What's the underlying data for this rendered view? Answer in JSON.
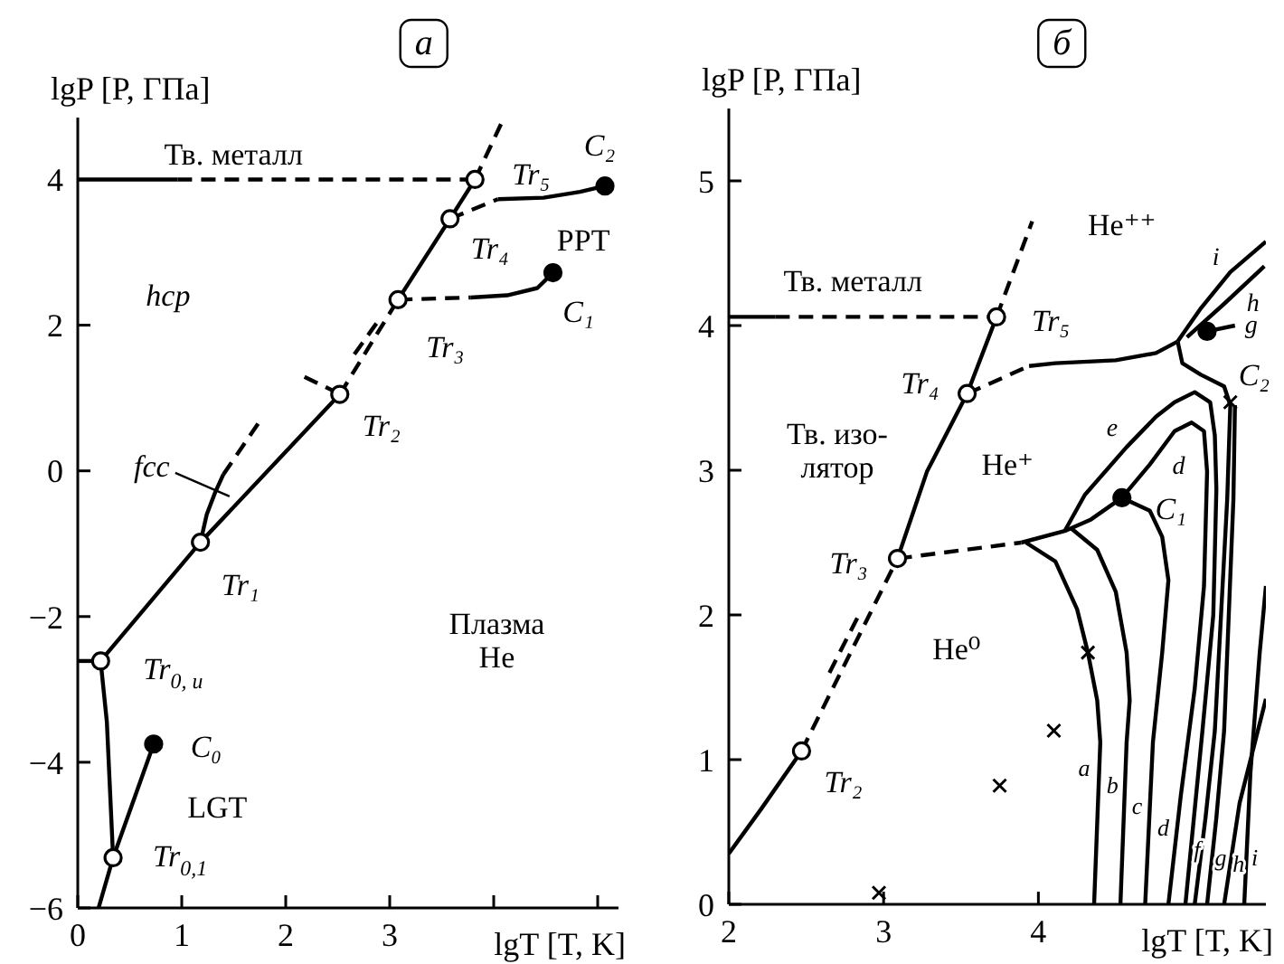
{
  "chart_data": [
    {
      "type": "line",
      "title": "а",
      "xlabel": "lgT [T, K]",
      "ylabel": "lgP [P, ГПа]",
      "xlim": [
        0,
        5.2
      ],
      "ylim": [
        -6,
        4.85
      ],
      "xticks": [
        0,
        1,
        2,
        3,
        {
          "value": 4,
          "label": null
        },
        {
          "value": 5,
          "label": null
        }
      ],
      "yticks": [
        -6,
        -4,
        -2,
        0,
        2,
        4
      ],
      "series": [
        {
          "type": "line",
          "line_style": "solid",
          "color": "#000000",
          "x": [
            0,
            0.96
          ],
          "values": [
            4,
            4
          ]
        },
        {
          "type": "line",
          "line_style": "dashed",
          "color": "#000000",
          "x": [
            0.96,
            3.82
          ],
          "values": [
            4,
            4
          ]
        },
        {
          "type": "line",
          "line_style": "dashed",
          "color": "#000000",
          "x": [
            3.82,
            4.07
          ],
          "values": [
            4,
            4.76
          ]
        },
        {
          "type": "line",
          "line_style": "solid",
          "color": "#000000",
          "x": [
            3.08,
            3.58,
            3.82
          ],
          "values": [
            2.35,
            3.46,
            4
          ]
        },
        {
          "type": "line",
          "line_style": "dashed",
          "color": "#000000",
          "x": [
            3.58,
            4.04
          ],
          "values": [
            3.46,
            3.73
          ]
        },
        {
          "type": "line",
          "line_style": "solid",
          "color": "#000000",
          "x": [
            4.04,
            4.48,
            4.83,
            5.07
          ],
          "values": [
            3.73,
            3.75,
            3.83,
            3.91
          ]
        },
        {
          "type": "line",
          "line_style": "dashed",
          "color": "#000000",
          "x": [
            3.08,
            3.78
          ],
          "values": [
            2.35,
            2.38
          ]
        },
        {
          "type": "line",
          "line_style": "solid",
          "color": "#000000",
          "x": [
            3.78,
            4.13,
            4.42,
            4.57
          ],
          "values": [
            2.38,
            2.41,
            2.51,
            2.72
          ]
        },
        {
          "type": "line",
          "line_style": "dashed",
          "color": "#000000",
          "x": [
            2.52,
            3.08
          ],
          "values": [
            1.05,
            2.35
          ]
        },
        {
          "type": "line",
          "line_style": "dashed",
          "color": "#000000",
          "x": [
            2.66,
            2.88
          ],
          "values": [
            1.6,
            2.04
          ]
        },
        {
          "type": "line",
          "line_style": "dashed",
          "color": "#000000",
          "x": [
            2.18,
            2.47
          ],
          "values": [
            1.29,
            1.09
          ]
        },
        {
          "type": "line",
          "line_style": "solid",
          "color": "#000000",
          "x": [
            0.22,
            1.18,
            2.52
          ],
          "values": [
            -2.61,
            -0.98,
            1.05
          ]
        },
        {
          "type": "line",
          "line_style": "solid",
          "color": "#000000",
          "x": [
            1.18,
            1.24,
            1.32,
            1.4
          ],
          "values": [
            -0.98,
            -0.6,
            -0.3,
            -0.05
          ]
        },
        {
          "type": "line",
          "line_style": "dashed",
          "color": "#000000",
          "x": [
            1.4,
            1.75
          ],
          "values": [
            -0.05,
            0.68
          ]
        },
        {
          "type": "line",
          "line_style": "solid",
          "color": "#000000",
          "x": [
            0,
            0.22
          ],
          "values": [
            -2.61,
            -2.61
          ]
        },
        {
          "type": "line",
          "line_style": "solid",
          "color": "#000000",
          "x": [
            0.22,
            0.28,
            0.34,
            0.2
          ],
          "values": [
            -2.61,
            -3.45,
            -5.31,
            -6
          ]
        },
        {
          "type": "line",
          "line_style": "solid",
          "color": "#000000",
          "x": [
            0.34,
            0.73
          ],
          "values": [
            -5.31,
            -3.75
          ]
        },
        {
          "type": "scatter",
          "marker": "circle",
          "color": "#ffffff",
          "x": [
            0.22,
            0.34,
            1.18,
            2.52,
            3.08,
            3.58,
            3.82
          ],
          "values": [
            -2.61,
            -5.31,
            -0.98,
            1.05,
            2.35,
            3.46,
            4
          ]
        },
        {
          "type": "scatter",
          "marker": "circle",
          "color": "#000000",
          "x": [
            0.73,
            4.57,
            5.07
          ],
          "values": [
            -3.75,
            2.72,
            3.91
          ]
        }
      ],
      "annotations": [
        "Тв. металл",
        "hcp",
        {
          "text": "Tr₅",
          "x": 3.82,
          "y": 4
        },
        {
          "text": "C₂",
          "x": 5.07,
          "y": 3.91
        },
        {
          "text": "Tr₄",
          "x": 3.58,
          "y": 3.46
        },
        "PPT",
        {
          "text": "C₁",
          "x": 4.57,
          "y": 2.72
        },
        {
          "text": "Tr₃",
          "x": 3.08,
          "y": 2.35
        },
        {
          "text": "Tr₂",
          "x": 2.52,
          "y": 1.05
        },
        {
          "text": "fcc",
          "x": 1.32,
          "y": -0.3
        },
        {
          "text": "Tr₁",
          "x": 1.18,
          "y": -0.98
        },
        "Плазма\nHe",
        {
          "text": "Tr$_{0, u}$",
          "x": 0.22,
          "y": -2.61
        },
        {
          "text": "C₀",
          "x": 0.73,
          "y": -3.75
        },
        "LGT",
        {
          "text": "Tr$_{0,1}$",
          "x": 0.34,
          "y": -5.31
        }
      ]
    },
    {
      "type": "line",
      "title": "б",
      "xlabel": "lgT [T, K]",
      "ylabel": "lgP [P, ГПа]",
      "xlim": [
        2,
        5.47
      ],
      "ylim": [
        0,
        5.5
      ],
      "xticks": [
        2,
        3,
        4
      ],
      "yticks": [
        0,
        1,
        2,
        3,
        4,
        5
      ],
      "series": [
        {
          "type": "line",
          "line_style": "solid",
          "color": "#000000",
          "x": [
            2,
            2.3
          ],
          "values": [
            4.06,
            4.06
          ]
        },
        {
          "type": "line",
          "line_style": "dashed",
          "color": "#000000",
          "x": [
            2.3,
            3.73
          ],
          "values": [
            4.06,
            4.06
          ]
        },
        {
          "type": "line",
          "line_style": "dashed",
          "color": "#000000",
          "x": [
            3.73,
            3.96
          ],
          "values": [
            4.06,
            4.72
          ]
        },
        {
          "type": "line",
          "line_style": "solid",
          "color": "#000000",
          "x": [
            3.09,
            3.28,
            3.54,
            3.73
          ],
          "values": [
            2.39,
            2.99,
            3.53,
            4.06
          ]
        },
        {
          "type": "line",
          "line_style": "dashed",
          "color": "#000000",
          "x": [
            3.54,
            3.94
          ],
          "values": [
            3.53,
            3.72
          ]
        },
        {
          "type": "line",
          "line_style": "solid",
          "color": "#000000",
          "x": [
            3.94,
            4.11,
            4.5,
            4.76,
            4.9
          ],
          "values": [
            3.72,
            3.74,
            3.76,
            3.81,
            3.89
          ]
        },
        {
          "type": "line",
          "line_style": "solid",
          "color": "#000000",
          "x": [
            4.9,
            5.05,
            5.24,
            5.47
          ],
          "values": [
            3.89,
            4.12,
            4.37,
            4.58
          ]
        },
        {
          "type": "line",
          "line_style": "solid",
          "color": "#000000",
          "x": [
            4.96,
            5.2,
            5.46
          ],
          "values": [
            3.92,
            4.15,
            4.41
          ]
        },
        {
          "type": "line",
          "line_style": "solid",
          "color": "#000000",
          "x": [
            5.09,
            5.27
          ],
          "values": [
            3.96,
            4
          ]
        },
        {
          "type": "line",
          "line_style": "solid",
          "color": "#000000",
          "x": [
            4.9,
            4.93,
            5.05,
            5.2,
            5.24,
            5.22,
            5.18,
            5.14,
            5.08,
            5.01
          ],
          "values": [
            3.89,
            3.74,
            3.66,
            3.58,
            3.45,
            2.8,
            2,
            1.2,
            0.6,
            0
          ]
        },
        {
          "type": "line",
          "line_style": "solid",
          "color": "#000000",
          "x": [
            5.27,
            5.26,
            5.23,
            5.2,
            5.15,
            5.09
          ],
          "values": [
            3.45,
            2.8,
            2,
            1.2,
            0.6,
            0
          ]
        },
        {
          "type": "line",
          "line_style": "solid",
          "color": "#000000",
          "x": [
            2,
            2.21,
            2.47
          ],
          "values": [
            0.35,
            0.66,
            1.06
          ]
        },
        {
          "type": "line",
          "line_style": "dashed",
          "color": "#000000",
          "x": [
            2.47,
            3.09
          ],
          "values": [
            1.06,
            2.39
          ]
        },
        {
          "type": "line",
          "line_style": "dashed",
          "color": "#000000",
          "x": [
            2.65,
            2.84
          ],
          "values": [
            1.6,
            2
          ]
        },
        {
          "type": "line",
          "line_style": "dashed",
          "color": "#000000",
          "x": [
            3.09,
            3.89
          ],
          "values": [
            2.39,
            2.5
          ]
        },
        {
          "type": "line",
          "line_style": "solid",
          "color": "#000000",
          "x": [
            3.89,
            4.17,
            4.34,
            4.54
          ],
          "values": [
            2.5,
            2.58,
            2.66,
            2.81
          ]
        },
        {
          "type": "line",
          "line_style": "solid",
          "color": "#000000",
          "x": [
            3.92,
            4.11,
            4.25,
            4.32,
            4.38,
            4.4,
            4.36
          ],
          "values": [
            2.5,
            2.37,
            2.04,
            1.74,
            1.41,
            1.12,
            0
          ]
        },
        {
          "type": "line",
          "line_style": "solid",
          "color": "#000000",
          "x": [
            4.21,
            4.38,
            4.5,
            4.57,
            4.59,
            4.57,
            4.53
          ],
          "values": [
            2.6,
            2.45,
            2.16,
            1.74,
            1.41,
            1.12,
            0
          ]
        },
        {
          "type": "line",
          "line_style": "solid",
          "color": "#000000",
          "x": [
            4.54,
            4.72,
            4.8,
            4.84,
            4.8,
            4.74,
            4.69
          ],
          "values": [
            2.81,
            2.72,
            2.54,
            2.24,
            1.74,
            1.12,
            0
          ]
        },
        {
          "type": "line",
          "line_style": "solid",
          "color": "#000000",
          "x": [
            4.54,
            4.72,
            4.88,
            4.99,
            5.07,
            5.09,
            5.07,
            5.01,
            4.92,
            4.84
          ],
          "values": [
            2.81,
            3.04,
            3.27,
            3.33,
            3.27,
            2.99,
            2.2,
            1.49,
            0.75,
            0
          ]
        },
        {
          "type": "line",
          "line_style": "solid",
          "color": "#000000",
          "x": [
            4.17,
            4.3,
            4.57,
            4.76,
            4.88,
            5.01,
            5.11,
            5.14,
            5.15,
            5.13,
            5.06,
            4.95
          ],
          "values": [
            2.58,
            2.83,
            3.16,
            3.37,
            3.47,
            3.54,
            3.47,
            3.24,
            2.87,
            2,
            1.2,
            0
          ]
        },
        {
          "type": "line",
          "line_style": "solid",
          "color": "#000000",
          "x": [
            5.2,
            5.3,
            5.47
          ],
          "values": [
            0,
            0.7,
            1.42
          ]
        },
        {
          "type": "line",
          "line_style": "solid",
          "color": "#000000",
          "x": [
            5.33,
            5.37,
            5.43,
            5.47
          ],
          "values": [
            0,
            0.91,
            1.74,
            2.2
          ]
        },
        {
          "type": "scatter",
          "marker": "circle",
          "color": "#ffffff",
          "x": [
            2.47,
            3.09,
            3.54,
            3.73
          ],
          "values": [
            1.06,
            2.39,
            3.53,
            4.06
          ]
        },
        {
          "type": "scatter",
          "marker": "circle",
          "color": "#000000",
          "x": [
            4.54,
            5.09
          ],
          "values": [
            2.81,
            3.96
          ]
        },
        {
          "type": "scatter",
          "marker": "cross",
          "color": "#000000",
          "x": [
            4.32,
            4.1,
            3.75,
            2.97,
            5.24
          ],
          "values": [
            1.74,
            1.2,
            0.82,
            0.08,
            3.47
          ]
        }
      ],
      "annotations": [
        "Тв. металл",
        "He⁺⁺",
        {
          "text": "Tr₅",
          "x": 3.73,
          "y": 4.06
        },
        {
          "text": "Tr₄",
          "x": 3.54,
          "y": 3.53
        },
        "Тв. изо-\nлятор",
        "He⁺",
        {
          "text": "e",
          "x": 4.57,
          "y": 3.16
        },
        {
          "text": "d",
          "x": 4.72,
          "y": 3.04
        },
        {
          "text": "C₂",
          "x": 5.09,
          "y": 3.96
        },
        {
          "text": "i",
          "x": 5.24,
          "y": 4.37
        },
        {
          "text": "h",
          "x": 5.2,
          "y": 4.15
        },
        {
          "text": "g",
          "x": 5.27,
          "y": 4
        },
        {
          "text": "C₁",
          "x": 4.54,
          "y": 2.81
        },
        {
          "text": "Tr₃",
          "x": 3.09,
          "y": 2.39
        },
        "He⁰",
        {
          "text": "Tr₂",
          "x": 2.47,
          "y": 1.06
        },
        {
          "text": "a",
          "x": 4.39,
          "y": 0.95
        },
        {
          "text": "b",
          "x": 4.56,
          "y": 0.83
        },
        {
          "text": "c",
          "x": 4.72,
          "y": 0.69
        },
        {
          "text": "d",
          "x": 4.9,
          "y": 0.54
        },
        {
          "text": "f",
          "x": 5.06,
          "y": 0.39
        },
        {
          "text": "g",
          "x": 5.12,
          "y": 0.33
        },
        {
          "text": "h",
          "x": 5.24,
          "y": 0.29
        },
        {
          "text": "i",
          "x": 5.34,
          "y": 0.33
        }
      ]
    }
  ]
}
